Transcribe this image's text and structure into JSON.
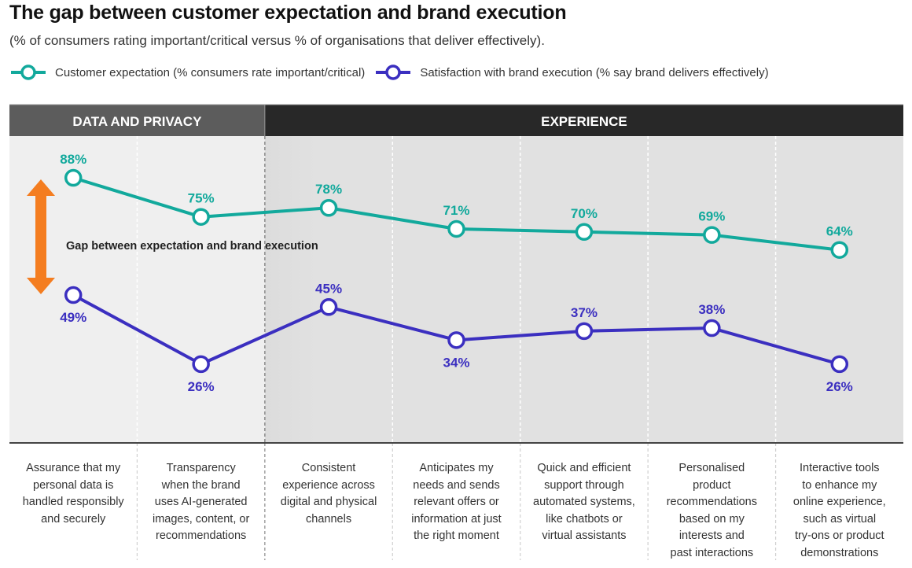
{
  "chart_data": {
    "type": "line",
    "title": "The gap between customer expectation and brand execution",
    "subtitle": "(% of consumers rating important/critical versus % of organisations that deliver effectively).",
    "xlabel": "",
    "ylabel": "",
    "ylim": [
      0,
      100
    ],
    "grid": false,
    "legend_position": "top-left",
    "sections": [
      {
        "label": "DATA AND PRIVACY",
        "categories": [
          0,
          1
        ],
        "color": "#5c5c5c",
        "background": "#efefef"
      },
      {
        "label": "EXPERIENCE",
        "categories": [
          2,
          3,
          4,
          5,
          6
        ],
        "color": "#282828",
        "background": "#e1e1e1"
      }
    ],
    "categories": [
      [
        "Assurance that my",
        "personal data is",
        "handled responsibly",
        "and securely"
      ],
      [
        "Transparency",
        "when the brand",
        "uses AI-generated",
        "images, content, or",
        "recommendations"
      ],
      [
        "Consistent",
        "experience across",
        "digital and physical",
        "channels"
      ],
      [
        "Anticipates my",
        "needs and sends",
        "relevant offers or",
        "information at just",
        "the right moment"
      ],
      [
        "Quick and efficient",
        "support through",
        "automated systems,",
        "like chatbots or",
        "virtual assistants"
      ],
      [
        "Personalised",
        "product",
        "recommendations",
        "based on my",
        "interests and",
        "past interactions"
      ],
      [
        "Interactive tools",
        "to enhance my",
        "online experience,",
        "such as virtual",
        "try-ons or product",
        "demonstrations"
      ]
    ],
    "series": [
      {
        "name": "Customer expectation (% consumers rate important/critical)",
        "color": "#12a99c",
        "values": [
          88,
          75,
          78,
          71,
          70,
          69,
          64
        ],
        "labels": [
          "88%",
          "75%",
          "78%",
          "71%",
          "70%",
          "69%",
          "64%"
        ],
        "label_position": "above"
      },
      {
        "name": "Satisfaction with brand execution (% say brand delivers effectively)",
        "color": "#3b2fc0",
        "values": [
          49,
          26,
          45,
          34,
          37,
          38,
          26
        ],
        "labels": [
          "49%",
          "26%",
          "45%",
          "34%",
          "37%",
          "38%",
          "26%"
        ],
        "label_position": [
          "below",
          "below",
          "above",
          "below",
          "above",
          "above",
          "below"
        ]
      }
    ],
    "annotations": [
      {
        "text": "Gap between expectation and brand execution",
        "type": "double-arrow",
        "color": "#f47d20",
        "between": [
          0,
          1
        ],
        "category": 0
      }
    ]
  }
}
